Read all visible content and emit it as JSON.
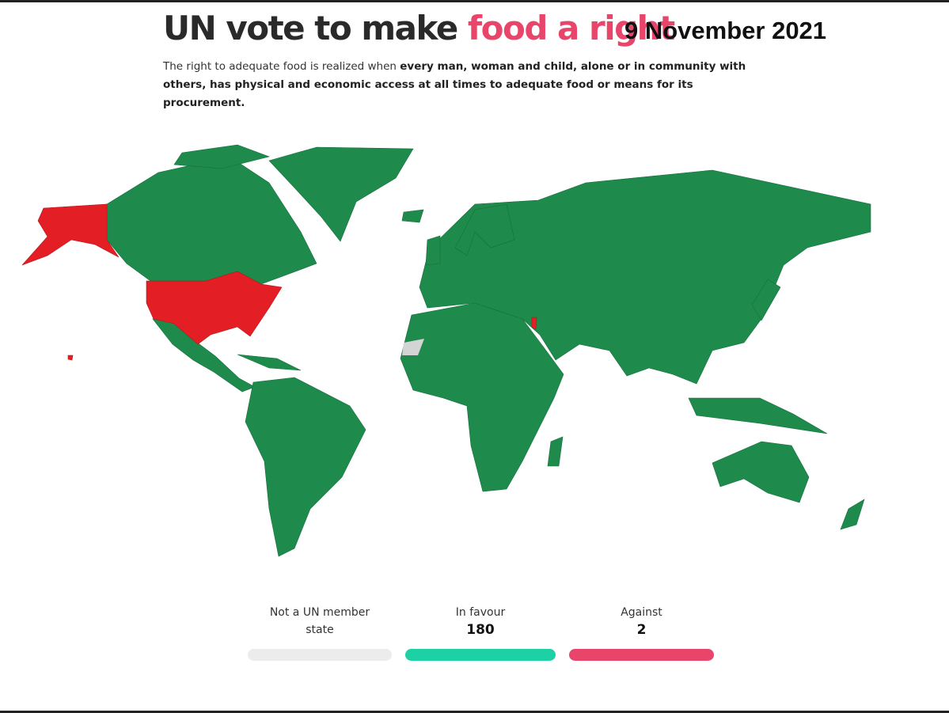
{
  "header": {
    "title_plain": "UN vote to make",
    "title_highlight": "food a right",
    "date": "9 November 2021",
    "subtitle_plain": "The right to adequate food is realized when",
    "subtitle_bold": "every man, woman and child, alone or in community with others, has physical and economic access at all times to adequate food or means for its procurement."
  },
  "legend": [
    {
      "label": "Not a UN member state",
      "color": "#ececec"
    },
    {
      "label": "In favour",
      "count": 180,
      "color": "#1ed1a4"
    },
    {
      "label": "Against",
      "count": 2,
      "color": "#e9456b"
    }
  ]
}
